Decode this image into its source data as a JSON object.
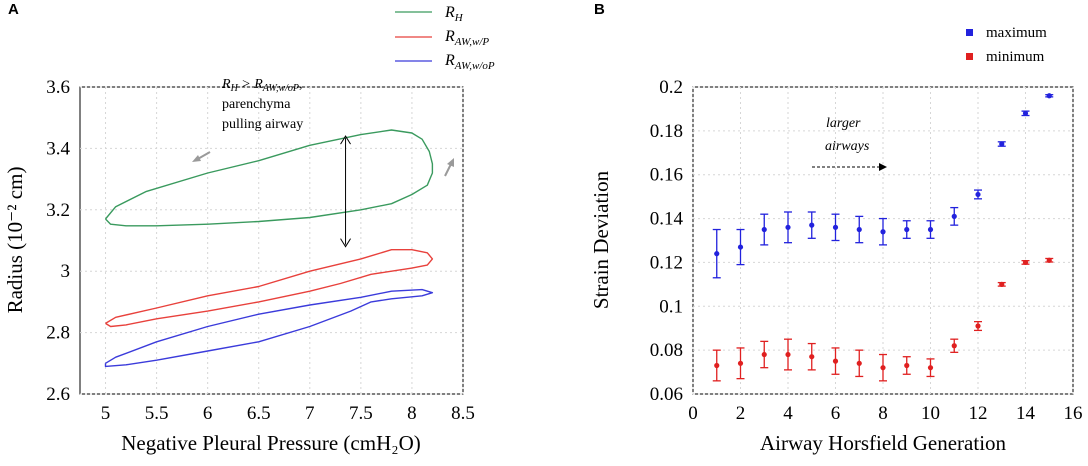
{
  "chart_data": [
    {
      "type": "line",
      "panel": "A",
      "xlabel": "Negative Pleural Pressure (cmH₂O)",
      "ylabel": "Radius (10⁻² cm)",
      "xlim": [
        4.75,
        8.5
      ],
      "ylim": [
        2.6,
        3.6
      ],
      "xticks": [
        5,
        5.5,
        6,
        6.5,
        7,
        7.5,
        8,
        8.5
      ],
      "xtick_labels": [
        "5",
        "5.5",
        "6",
        "6.5",
        "7",
        "7.5",
        "8",
        "8.5"
      ],
      "yticks": [
        2.6,
        2.8,
        3,
        3.2,
        3.4,
        3.6
      ],
      "ytick_labels": [
        "2.6",
        "2.8",
        "3",
        "3.2",
        "3.4",
        "3.6"
      ],
      "grid": true,
      "legend_position": "top",
      "series": [
        {
          "name": "R_H",
          "label_main": "R",
          "label_sub": "H",
          "color": "#3a9a5e",
          "points": [
            [
              5.0,
              3.17
            ],
            [
              5.1,
              3.21
            ],
            [
              5.4,
              3.26
            ],
            [
              6.0,
              3.32
            ],
            [
              6.5,
              3.36
            ],
            [
              7.0,
              3.41
            ],
            [
              7.5,
              3.445
            ],
            [
              7.8,
              3.46
            ],
            [
              8.0,
              3.45
            ],
            [
              8.1,
              3.43
            ],
            [
              8.17,
              3.39
            ],
            [
              8.2,
              3.35
            ],
            [
              8.2,
              3.32
            ],
            [
              8.15,
              3.28
            ],
            [
              8.0,
              3.25
            ],
            [
              7.8,
              3.22
            ],
            [
              7.5,
              3.2
            ],
            [
              7.0,
              3.175
            ],
            [
              6.5,
              3.162
            ],
            [
              6.0,
              3.153
            ],
            [
              5.5,
              3.148
            ],
            [
              5.2,
              3.148
            ],
            [
              5.05,
              3.153
            ],
            [
              5.0,
              3.17
            ]
          ]
        },
        {
          "name": "R_AW,w/P",
          "label_main": "R",
          "label_sub": "AW,w/P",
          "color": "#e8413c",
          "points": [
            [
              5.0,
              2.83
            ],
            [
              5.1,
              2.85
            ],
            [
              5.5,
              2.88
            ],
            [
              6.0,
              2.92
            ],
            [
              6.5,
              2.95
            ],
            [
              7.0,
              3.0
            ],
            [
              7.5,
              3.04
            ],
            [
              7.8,
              3.07
            ],
            [
              8.0,
              3.07
            ],
            [
              8.15,
              3.06
            ],
            [
              8.2,
              3.04
            ],
            [
              8.15,
              3.02
            ],
            [
              8.0,
              3.01
            ],
            [
              7.8,
              3.0
            ],
            [
              7.6,
              2.99
            ],
            [
              7.3,
              2.96
            ],
            [
              7.0,
              2.935
            ],
            [
              6.5,
              2.9
            ],
            [
              6.0,
              2.87
            ],
            [
              5.5,
              2.845
            ],
            [
              5.2,
              2.825
            ],
            [
              5.05,
              2.82
            ],
            [
              5.0,
              2.83
            ]
          ]
        },
        {
          "name": "R_AW,w/oP",
          "label_main": "R",
          "label_sub": "AW,w/oP",
          "color": "#3b3bdb",
          "points": [
            [
              5.0,
              2.7
            ],
            [
              5.1,
              2.72
            ],
            [
              5.5,
              2.77
            ],
            [
              6.0,
              2.82
            ],
            [
              6.5,
              2.86
            ],
            [
              7.0,
              2.89
            ],
            [
              7.5,
              2.915
            ],
            [
              7.8,
              2.935
            ],
            [
              8.1,
              2.94
            ],
            [
              8.2,
              2.93
            ],
            [
              8.1,
              2.92
            ],
            [
              7.8,
              2.91
            ],
            [
              7.6,
              2.9
            ],
            [
              7.4,
              2.87
            ],
            [
              7.0,
              2.82
            ],
            [
              6.5,
              2.77
            ],
            [
              6.0,
              2.74
            ],
            [
              5.5,
              2.71
            ],
            [
              5.2,
              2.695
            ],
            [
              5.0,
              2.69
            ],
            [
              5.0,
              2.7
            ]
          ]
        }
      ],
      "annotation": {
        "line1_main": "R",
        "line1_sub1": "H",
        "line1_mid": " > R",
        "line1_sub2": "AW,w/oP",
        "line1_end": ",",
        "line2": "parenchyma",
        "line3": "pulling airway",
        "double_arrow_x": 7.35,
        "double_arrow_y": [
          3.08,
          3.44
        ]
      }
    },
    {
      "type": "scatter",
      "panel": "B",
      "xlabel": "Airway Horsfield Generation",
      "ylabel": "Strain Deviation",
      "xlim": [
        0,
        16
      ],
      "ylim": [
        0.06,
        0.2
      ],
      "xticks": [
        0,
        2,
        4,
        6,
        8,
        10,
        12,
        14,
        16
      ],
      "xtick_labels": [
        "0",
        "2",
        "4",
        "6",
        "8",
        "10",
        "12",
        "14",
        "16"
      ],
      "yticks": [
        0.06,
        0.08,
        0.1,
        0.12,
        0.14,
        0.16,
        0.18,
        0.2
      ],
      "ytick_labels": [
        "0.06",
        "0.08",
        "0.1",
        "0.12",
        "0.14",
        "0.16",
        "0.18",
        "0.2"
      ],
      "grid": true,
      "legend_position": "top-right",
      "x": [
        1,
        2,
        3,
        4,
        5,
        6,
        7,
        8,
        9,
        10,
        11,
        12,
        13,
        14,
        15
      ],
      "series": [
        {
          "name": "maximum",
          "color": "#2222dd",
          "values": [
            0.124,
            0.127,
            0.135,
            0.136,
            0.137,
            0.136,
            0.135,
            0.134,
            0.135,
            0.135,
            0.141,
            0.151,
            0.174,
            0.188,
            0.196
          ],
          "errors": [
            0.011,
            0.008,
            0.007,
            0.007,
            0.006,
            0.006,
            0.006,
            0.006,
            0.004,
            0.004,
            0.004,
            0.002,
            0.001,
            0.001,
            0.0005
          ]
        },
        {
          "name": "minimum",
          "color": "#e02020",
          "values": [
            0.073,
            0.074,
            0.078,
            0.078,
            0.077,
            0.075,
            0.074,
            0.072,
            0.073,
            0.072,
            0.082,
            0.091,
            0.11,
            0.12,
            0.121
          ],
          "errors": [
            0.007,
            0.007,
            0.006,
            0.007,
            0.006,
            0.006,
            0.006,
            0.006,
            0.004,
            0.004,
            0.003,
            0.002,
            0.0008,
            0.0008,
            0.0008
          ]
        }
      ],
      "annotation": {
        "line1": "larger",
        "line2": "airways"
      }
    }
  ],
  "labels": {
    "panel_a": "A",
    "panel_b": "B"
  }
}
